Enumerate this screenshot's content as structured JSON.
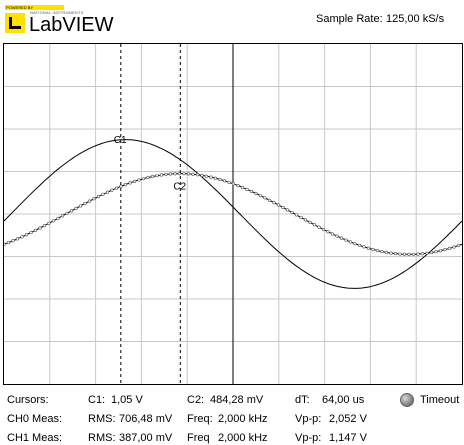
{
  "header": {
    "logo_powered_by": "POWERED BY",
    "logo_maker": "NATIONAL INSTRUMENTS",
    "logo_brand": "LabVIEW",
    "sample_rate_label": "Sample Rate:",
    "sample_rate_value": "125,00 kS/s"
  },
  "plot": {
    "cursor1_label": "C1",
    "cursor2_label": "C2",
    "grid_divisions_x": 10,
    "grid_divisions_y": 8,
    "colors": {
      "grid": "#c8c8c8",
      "trace": "#000000",
      "background": "#ffffff"
    }
  },
  "chart_data": {
    "type": "line",
    "title": "",
    "xlabel": "",
    "ylabel": "",
    "grid": true,
    "series": [
      {
        "label_on_plot": "C1",
        "style": "solid",
        "amplitude_div": 1.75,
        "phase_div": 0.15
      },
      {
        "label_on_plot": "C2",
        "style": "dotted-markers",
        "amplitude_div": 0.95,
        "phase_div": 1.35
      }
    ],
    "cursors": [
      {
        "name": "C1",
        "position_div": 2.55
      },
      {
        "name": "C2",
        "position_div": 3.85
      }
    ],
    "center_marker_div": 5.0
  },
  "measurements": {
    "cursors": {
      "label": "Cursors:",
      "c1_label": "C1:",
      "c1_value": "1,05 V",
      "c2_label": "C2:",
      "c2_value": "484,28 mV",
      "dt_label": "dT:",
      "dt_value": "64,00 us"
    },
    "ch0": {
      "label": "CH0 Meas:",
      "rms_label": "RMS:",
      "rms_value": "706,48 mV",
      "freq_label": "Freq:",
      "freq_value": "2,000 kHz",
      "vpp_label": "Vp-p:",
      "vpp_value": "2,052 V"
    },
    "ch1": {
      "label": "CH1 Meas:",
      "rms_label": "RMS:",
      "rms_value": "387,00 mV",
      "freq_label": "Freq",
      "freq_value": "2,000 kHz",
      "vpp_label": "Vp-p:",
      "vpp_value": "1,147 V"
    },
    "timeout_label": "Timeout"
  }
}
